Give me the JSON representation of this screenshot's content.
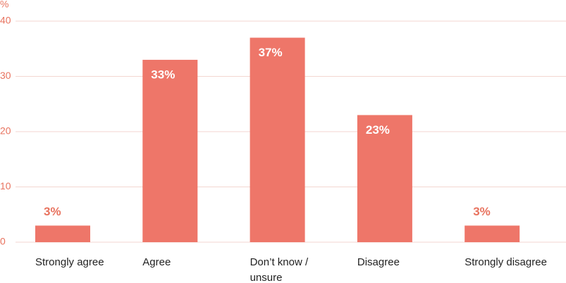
{
  "chart_data": {
    "type": "bar",
    "y_label": "%",
    "categories": [
      "Strongly agree",
      "Agree",
      "Don’t know / unsure",
      "Disagree",
      "Strongly disagree"
    ],
    "values": [
      3,
      33,
      37,
      23,
      3
    ],
    "value_labels": [
      "3%",
      "33%",
      "37%",
      "23%",
      "3%"
    ],
    "color": "#ee7669",
    "ylim": [
      0,
      40
    ],
    "yticks": [
      0,
      10,
      20,
      30,
      40
    ],
    "grid": true
  }
}
